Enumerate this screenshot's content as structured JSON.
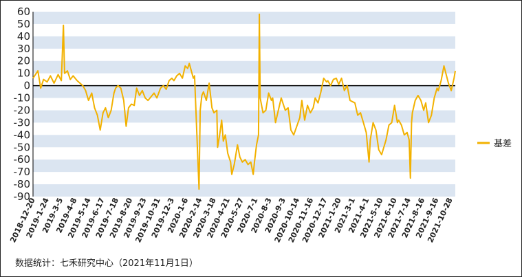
{
  "chart_data": {
    "type": "line",
    "title": "",
    "xlabel": "",
    "ylabel": "",
    "ylim": [
      -90,
      60
    ],
    "yticks": [
      60,
      50,
      40,
      30,
      20,
      10,
      0,
      -10,
      -20,
      -30,
      -40,
      -50,
      -60,
      -70,
      -80,
      -90
    ],
    "grid": "alternating horizontal bands",
    "legend_position": "right",
    "colors": {
      "series": "#f2b100",
      "band": "#dbe5f1",
      "zero_line": "#000000"
    },
    "x_tick_labels": [
      "2018-12-20",
      "2019-1-24",
      "2019-3-5",
      "2019-4-8",
      "2019-5-14",
      "2019-6-17",
      "2019-7-18",
      "2019-8-20",
      "2019-9-23",
      "2019-10-31",
      "2019-12-3",
      "2020-1-6",
      "2020-2-14",
      "2020-3-18",
      "2020-4-21",
      "2020-5-27",
      "2020-7-1",
      "2020-8-3",
      "2020-9-3",
      "2020-10-14",
      "2020-11-16",
      "2020-12-17",
      "2021-1-20",
      "2021-3-1",
      "2021-4-1",
      "2021-5-10",
      "2021-6-10",
      "2021-7-14",
      "2021-8-16",
      "2021-9-16",
      "2021-10-28"
    ],
    "series": [
      {
        "name": "基差",
        "points": [
          [
            "2018-12-20",
            6
          ],
          [
            "2019-1-1",
            12
          ],
          [
            "2019-1-8",
            -2
          ],
          [
            "2019-1-15",
            5
          ],
          [
            "2019-1-24",
            3
          ],
          [
            "2019-2-1",
            8
          ],
          [
            "2019-2-10",
            2
          ],
          [
            "2019-2-20",
            9
          ],
          [
            "2019-2-28",
            4
          ],
          [
            "2019-3-5",
            49
          ],
          [
            "2019-3-8",
            10
          ],
          [
            "2019-3-15",
            12
          ],
          [
            "2019-3-22",
            5
          ],
          [
            "2019-3-29",
            8
          ],
          [
            "2019-4-8",
            4
          ],
          [
            "2019-4-15",
            2
          ],
          [
            "2019-4-22",
            0
          ],
          [
            "2019-4-29",
            -4
          ],
          [
            "2019-5-6",
            -12
          ],
          [
            "2019-5-14",
            -6
          ],
          [
            "2019-5-21",
            -18
          ],
          [
            "2019-5-28",
            -24
          ],
          [
            "2019-6-4",
            -36
          ],
          [
            "2019-6-11",
            -22
          ],
          [
            "2019-6-17",
            -18
          ],
          [
            "2019-6-24",
            -26
          ],
          [
            "2019-7-1",
            -20
          ],
          [
            "2019-7-8",
            -6
          ],
          [
            "2019-7-12",
            -2
          ],
          [
            "2019-7-18",
            0
          ],
          [
            "2019-7-25",
            -2
          ],
          [
            "2019-8-1",
            -12
          ],
          [
            "2019-8-7",
            -33
          ],
          [
            "2019-8-13",
            -18
          ],
          [
            "2019-8-20",
            -15
          ],
          [
            "2019-8-27",
            -16
          ],
          [
            "2019-9-2",
            -2
          ],
          [
            "2019-9-9",
            -8
          ],
          [
            "2019-9-16",
            -4
          ],
          [
            "2019-9-23",
            -10
          ],
          [
            "2019-9-30",
            -12
          ],
          [
            "2019-10-15",
            -6
          ],
          [
            "2019-10-22",
            -10
          ],
          [
            "2019-10-31",
            -2
          ],
          [
            "2019-11-7",
            0
          ],
          [
            "2019-11-14",
            -3
          ],
          [
            "2019-11-21",
            4
          ],
          [
            "2019-11-28",
            6
          ],
          [
            "2019-12-3",
            4
          ],
          [
            "2019-12-10",
            8
          ],
          [
            "2019-12-17",
            10
          ],
          [
            "2019-12-24",
            6
          ],
          [
            "2019-12-31",
            16
          ],
          [
            "2020-1-6",
            14
          ],
          [
            "2020-1-10",
            18
          ],
          [
            "2020-1-15",
            12
          ],
          [
            "2020-1-20",
            6
          ],
          [
            "2020-1-23",
            8
          ],
          [
            "2020-2-3",
            -84
          ],
          [
            "2020-2-6",
            -20
          ],
          [
            "2020-2-10",
            -8
          ],
          [
            "2020-2-14",
            -5
          ],
          [
            "2020-2-21",
            -12
          ],
          [
            "2020-2-28",
            2
          ],
          [
            "2020-3-6",
            -18
          ],
          [
            "2020-3-11",
            -22
          ],
          [
            "2020-3-18",
            -20
          ],
          [
            "2020-3-20",
            -50
          ],
          [
            "2020-3-25",
            -40
          ],
          [
            "2020-3-30",
            -28
          ],
          [
            "2020-4-3",
            -45
          ],
          [
            "2020-4-8",
            -40
          ],
          [
            "2020-4-14",
            -55
          ],
          [
            "2020-4-21",
            -62
          ],
          [
            "2020-4-24",
            -72
          ],
          [
            "2020-4-30",
            -64
          ],
          [
            "2020-5-8",
            -48
          ],
          [
            "2020-5-14",
            -58
          ],
          [
            "2020-5-20",
            -62
          ],
          [
            "2020-5-27",
            -60
          ],
          [
            "2020-6-3",
            -64
          ],
          [
            "2020-6-10",
            -62
          ],
          [
            "2020-6-16",
            -72
          ],
          [
            "2020-6-19",
            -62
          ],
          [
            "2020-6-24",
            -48
          ],
          [
            "2020-6-29",
            -40
          ],
          [
            "2020-7-1",
            58
          ],
          [
            "2020-7-3",
            -10
          ],
          [
            "2020-7-10",
            -22
          ],
          [
            "2020-7-17",
            -20
          ],
          [
            "2020-7-24",
            -6
          ],
          [
            "2020-7-31",
            -12
          ],
          [
            "2020-8-3",
            -10
          ],
          [
            "2020-8-10",
            -30
          ],
          [
            "2020-8-17",
            -20
          ],
          [
            "2020-8-24",
            -10
          ],
          [
            "2020-9-3",
            -20
          ],
          [
            "2020-9-10",
            -18
          ],
          [
            "2020-9-17",
            -36
          ],
          [
            "2020-9-24",
            -40
          ],
          [
            "2020-10-9",
            -26
          ],
          [
            "2020-10-14",
            -12
          ],
          [
            "2020-10-21",
            -28
          ],
          [
            "2020-10-28",
            -16
          ],
          [
            "2020-11-4",
            -22
          ],
          [
            "2020-11-11",
            -18
          ],
          [
            "2020-11-16",
            -10
          ],
          [
            "2020-11-23",
            -14
          ],
          [
            "2020-11-30",
            -5
          ],
          [
            "2020-12-7",
            6
          ],
          [
            "2020-12-14",
            3
          ],
          [
            "2020-12-17",
            4
          ],
          [
            "2020-12-24",
            0
          ],
          [
            "2020-12-31",
            5
          ],
          [
            "2021-1-7",
            6
          ],
          [
            "2021-1-13",
            1
          ],
          [
            "2021-1-20",
            6
          ],
          [
            "2021-1-27",
            -4
          ],
          [
            "2021-2-3",
            0
          ],
          [
            "2021-2-10",
            -12
          ],
          [
            "2021-2-22",
            -14
          ],
          [
            "2021-3-1",
            -24
          ],
          [
            "2021-3-8",
            -22
          ],
          [
            "2021-3-15",
            -30
          ],
          [
            "2021-3-22",
            -38
          ],
          [
            "2021-3-29",
            -62
          ],
          [
            "2021-4-1",
            -44
          ],
          [
            "2021-4-8",
            -30
          ],
          [
            "2021-4-15",
            -36
          ],
          [
            "2021-4-22",
            -52
          ],
          [
            "2021-4-29",
            -56
          ],
          [
            "2021-5-10",
            -44
          ],
          [
            "2021-5-17",
            -32
          ],
          [
            "2021-5-24",
            -30
          ],
          [
            "2021-5-31",
            -16
          ],
          [
            "2021-6-7",
            -30
          ],
          [
            "2021-6-10",
            -28
          ],
          [
            "2021-6-17",
            -32
          ],
          [
            "2021-6-24",
            -40
          ],
          [
            "2021-7-1",
            -38
          ],
          [
            "2021-7-6",
            -44
          ],
          [
            "2021-7-9",
            -75
          ],
          [
            "2021-7-12",
            -30
          ],
          [
            "2021-7-14",
            -22
          ],
          [
            "2021-7-21",
            -12
          ],
          [
            "2021-7-28",
            -8
          ],
          [
            "2021-8-4",
            -12
          ],
          [
            "2021-8-11",
            -20
          ],
          [
            "2021-8-16",
            -14
          ],
          [
            "2021-8-23",
            -30
          ],
          [
            "2021-8-30",
            -24
          ],
          [
            "2021-9-6",
            -10
          ],
          [
            "2021-9-13",
            -2
          ],
          [
            "2021-9-16",
            -4
          ],
          [
            "2021-9-23",
            4
          ],
          [
            "2021-9-30",
            16
          ],
          [
            "2021-10-11",
            2
          ],
          [
            "2021-10-18",
            -4
          ],
          [
            "2021-10-25",
            6
          ],
          [
            "2021-10-28",
            12
          ]
        ]
      }
    ]
  },
  "footnote": "数据统计：七禾研究中心（2021年11月1日）"
}
